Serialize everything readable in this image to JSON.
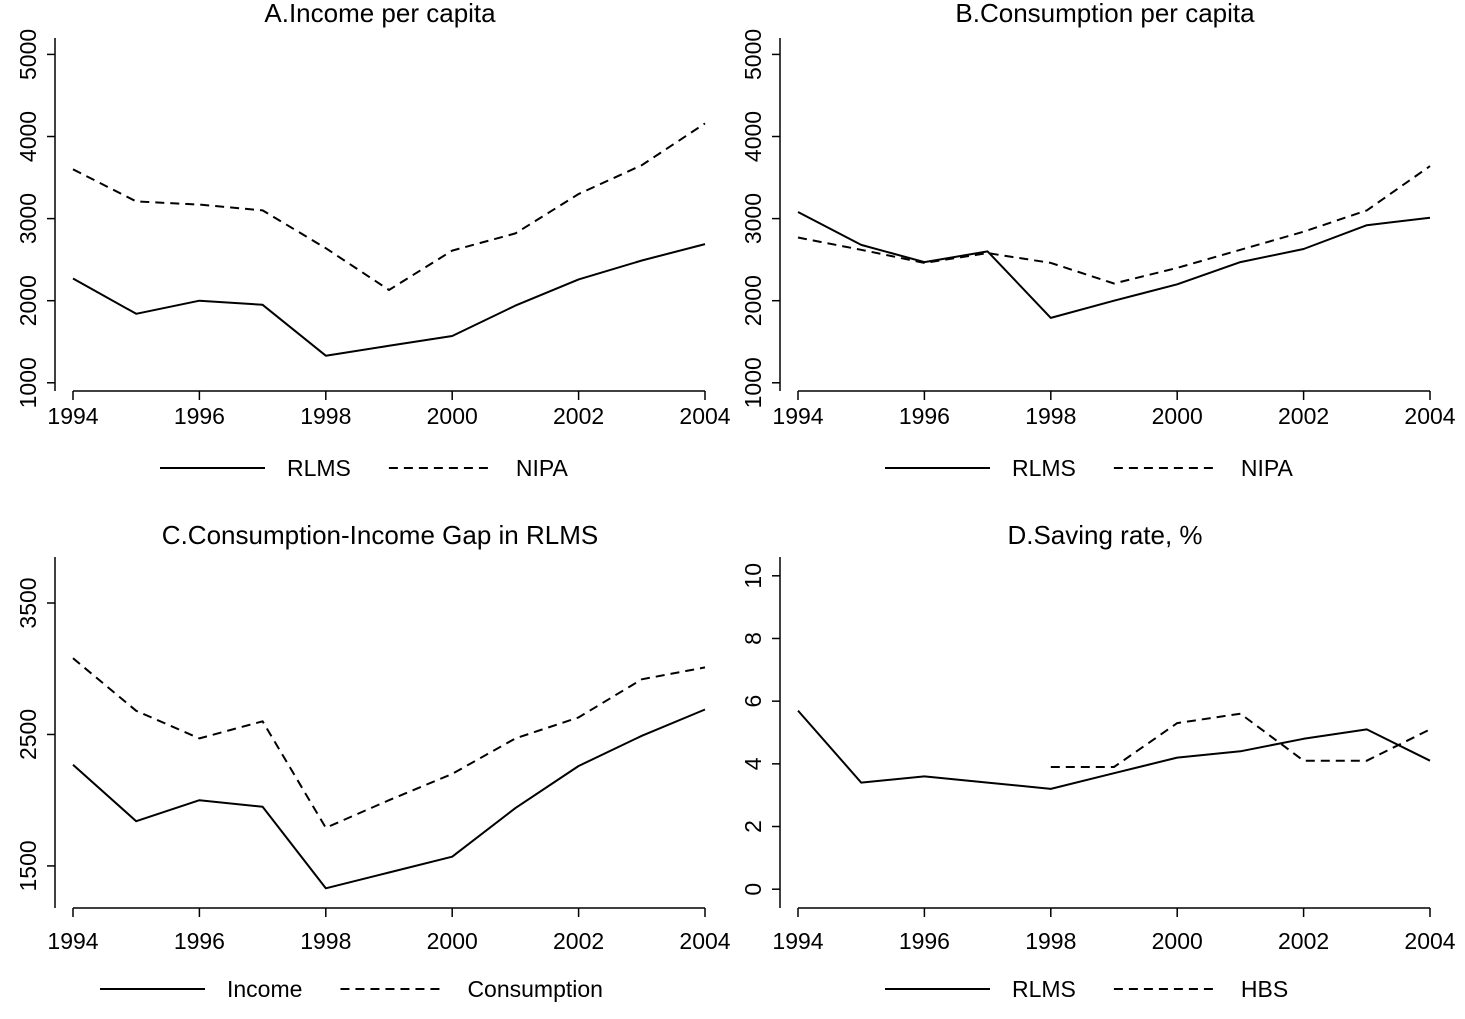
{
  "chart_data": [
    {
      "type": "line",
      "title": "A.Income per capita",
      "x": [
        1994,
        1995,
        1996,
        1997,
        1998,
        1999,
        2000,
        2001,
        2002,
        2003,
        2004
      ],
      "xticks": [
        1994,
        1996,
        1998,
        2000,
        2002,
        2004
      ],
      "xtick_labels": [
        "1994",
        "1996",
        "1998",
        "2000",
        "2002",
        "2004"
      ],
      "yticks": [
        1000,
        2000,
        3000,
        4000,
        5000
      ],
      "ytick_labels": [
        "1000",
        "2000",
        "3000",
        "4000",
        "5000"
      ],
      "xlim": [
        1994,
        2004
      ],
      "ylim": [
        900,
        5200
      ],
      "series": [
        {
          "name": "RLMS",
          "style": "solid",
          "values": [
            2270,
            1840,
            2000,
            1950,
            1330,
            1450,
            1570,
            1940,
            2260,
            2490,
            2690
          ]
        },
        {
          "name": "NIPA",
          "style": "dashed",
          "values": [
            3600,
            3210,
            3170,
            3100,
            2640,
            2130,
            2610,
            2820,
            3300,
            3650,
            4160
          ]
        }
      ],
      "legend_position": "bottom"
    },
    {
      "type": "line",
      "title": "B.Consumption per capita",
      "x": [
        1994,
        1995,
        1996,
        1997,
        1998,
        1999,
        2000,
        2001,
        2002,
        2003,
        2004
      ],
      "xticks": [
        1994,
        1996,
        1998,
        2000,
        2002,
        2004
      ],
      "xtick_labels": [
        "1994",
        "1996",
        "1998",
        "2000",
        "2002",
        "2004"
      ],
      "yticks": [
        1000,
        2000,
        3000,
        4000,
        5000
      ],
      "ytick_labels": [
        "1000",
        "2000",
        "3000",
        "4000",
        "5000"
      ],
      "xlim": [
        1994,
        2004
      ],
      "ylim": [
        900,
        5200
      ],
      "series": [
        {
          "name": "RLMS",
          "style": "solid",
          "values": [
            3080,
            2680,
            2470,
            2600,
            1790,
            2000,
            2200,
            2470,
            2630,
            2920,
            3010
          ]
        },
        {
          "name": "NIPA",
          "style": "dashed",
          "values": [
            2770,
            2620,
            2460,
            2580,
            2460,
            2210,
            2400,
            2620,
            2840,
            3100,
            3640
          ]
        }
      ],
      "legend_position": "bottom"
    },
    {
      "type": "line",
      "title": "C.Consumption-Income Gap in RLMS",
      "x": [
        1994,
        1995,
        1996,
        1997,
        1998,
        1999,
        2000,
        2001,
        2002,
        2003,
        2004
      ],
      "xticks": [
        1994,
        1996,
        1998,
        2000,
        2002,
        2004
      ],
      "xtick_labels": [
        "1994",
        "1996",
        "1998",
        "2000",
        "2002",
        "2004"
      ],
      "yticks": [
        1500,
        2500,
        3500
      ],
      "ytick_labels": [
        "1500",
        "2500",
        "3500"
      ],
      "xlim": [
        1994,
        2004
      ],
      "ylim": [
        1180,
        3850
      ],
      "series": [
        {
          "name": "Income",
          "style": "solid",
          "values": [
            2270,
            1840,
            2000,
            1950,
            1330,
            1450,
            1570,
            1940,
            2260,
            2490,
            2690
          ]
        },
        {
          "name": "Consumption",
          "style": "dashed",
          "values": [
            3080,
            2680,
            2470,
            2600,
            1790,
            2000,
            2200,
            2470,
            2630,
            2920,
            3010
          ]
        }
      ],
      "legend_position": "bottom"
    },
    {
      "type": "line",
      "title": "D.Saving rate, %",
      "x": [
        1994,
        1995,
        1996,
        1997,
        1998,
        1999,
        2000,
        2001,
        2002,
        2003,
        2004
      ],
      "xticks": [
        1994,
        1996,
        1998,
        2000,
        2002,
        2004
      ],
      "xtick_labels": [
        "1994",
        "1996",
        "1998",
        "2000",
        "2002",
        "2004"
      ],
      "yticks": [
        0,
        2,
        4,
        6,
        8,
        10
      ],
      "ytick_labels": [
        "0",
        "2",
        "4",
        "6",
        "8",
        "10"
      ],
      "xlim": [
        1994,
        2004
      ],
      "ylim": [
        -0.6,
        10.6
      ],
      "series": [
        {
          "name": "RLMS",
          "style": "solid",
          "values": [
            5.7,
            3.4,
            3.6,
            3.4,
            3.2,
            3.7,
            4.2,
            4.4,
            4.8,
            5.1,
            4.1
          ]
        },
        {
          "name": "HBS",
          "style": "dashed",
          "values": [
            null,
            null,
            null,
            null,
            3.9,
            3.9,
            5.3,
            5.6,
            4.1,
            4.1,
            5.1
          ]
        }
      ],
      "legend_position": "bottom"
    }
  ]
}
